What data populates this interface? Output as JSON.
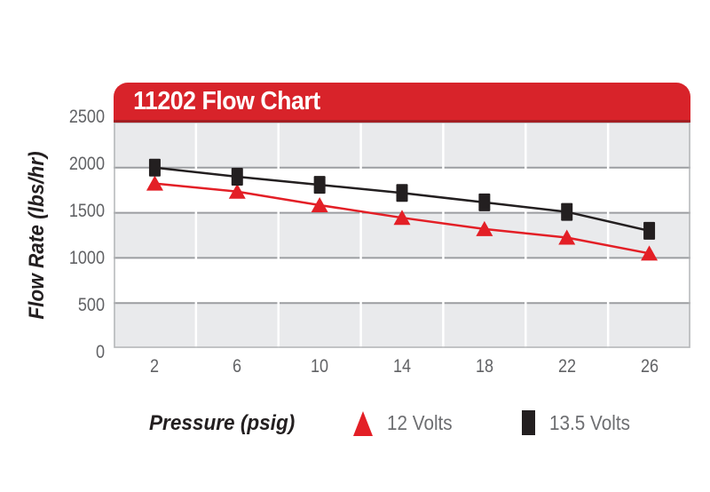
{
  "page": {
    "title": "11202 Flow Chart"
  },
  "colors": {
    "banner_red": "#d8232a",
    "banner_red_dark": "#a41e23",
    "series_red": "#e31f26",
    "series_black": "#231f20",
    "band_gray": "#e9eaec",
    "band_white": "#ffffff",
    "hgrid_gray": "#9b9da1",
    "vgrid_white": "#ffffff",
    "frame_gray": "#b4b6b8",
    "tick_label_gray": "#616265",
    "legend_label_gray": "#6d6e71"
  },
  "chart_data": {
    "type": "line",
    "title": "11202 Flow Chart",
    "xlabel": "Pressure (psig)",
    "ylabel": "Flow Rate (lbs/hr)",
    "x": [
      2,
      6,
      10,
      14,
      18,
      22,
      26
    ],
    "series": [
      {
        "name": "12 Volts",
        "color": "#e31f26",
        "marker": "triangle",
        "values": [
          1825,
          1735,
          1585,
          1445,
          1320,
          1225,
          1050
        ]
      },
      {
        "name": "13.5 Volts",
        "color": "#231f20",
        "marker": "square",
        "values": [
          2000,
          1900,
          1810,
          1720,
          1615,
          1510,
          1300
        ]
      }
    ],
    "xlim": [
      0,
      28
    ],
    "ylim": [
      0,
      2500
    ],
    "y_ticks": [
      0,
      500,
      1000,
      1500,
      2000,
      2500
    ],
    "x_gridline_step": 4,
    "grid": "alternating horizontal gray/white bands, white vertical gridlines every 4 psig, gray horizontal lines every 500",
    "legend_position": "bottom"
  }
}
